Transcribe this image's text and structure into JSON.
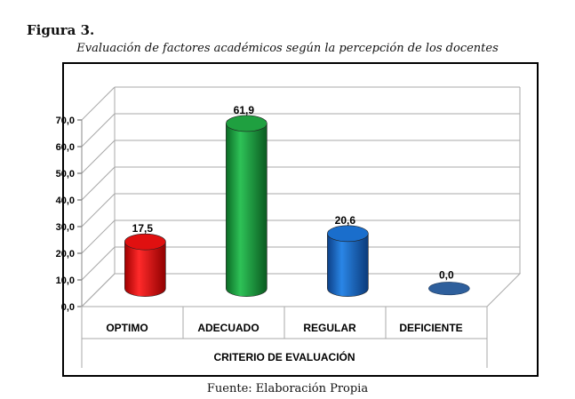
{
  "figure": {
    "label": "Figura 3.",
    "title": "Evaluación de factores académicos según la percepción de los docentes",
    "source": "Fuente: Elaboración Propia"
  },
  "chart_data": {
    "type": "bar",
    "style": "3d-cylinder",
    "categories": [
      "OPTIMO",
      "ADECUADO",
      "REGULAR",
      "DEFICIENTE"
    ],
    "values": [
      17.5,
      61.9,
      20.6,
      0.0
    ],
    "value_labels": [
      "17,5",
      "61,9",
      "20,6",
      "0,0"
    ],
    "colors": [
      "#e01010",
      "#1fa040",
      "#1a6ecc",
      "#2e5f9c"
    ],
    "y_ticks": [
      "0,0",
      "10,0",
      "20,0",
      "30,0",
      "40,0",
      "50,0",
      "60,0",
      "70,0"
    ],
    "ylim": [
      0,
      70
    ],
    "xlabel": "CRITERIO DE EVALUACIÓN",
    "grid": true
  }
}
